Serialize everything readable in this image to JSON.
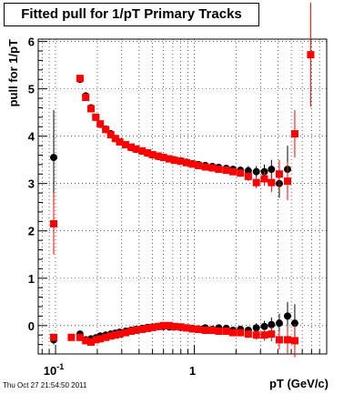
{
  "title": "Fitted pull for 1/pT  Primary Tracks",
  "datestamp": "Thu Oct 27 21:54:50 2011",
  "chart_data": {
    "type": "scatter",
    "xlabel": "pT (GeV/c)",
    "ylabel": "pull for 1/pT",
    "x_scale": "log",
    "xlim": [
      0.075,
      9.0
    ],
    "ylim": [
      -0.6,
      6.05
    ],
    "grid": true,
    "x_tick_labels": [
      {
        "value": 0.1,
        "base": "10",
        "exp": "-1"
      },
      {
        "value": 1,
        "base": "1",
        "exp": ""
      }
    ],
    "y_ticks": [
      0,
      1,
      2,
      3,
      4,
      5,
      6
    ],
    "series": [
      {
        "color": "#000000",
        "marker": "circle",
        "mean_points": [
          {
            "x": 0.097,
            "y": 3.55,
            "err": 1.0
          },
          {
            "x": 0.15,
            "y": 5.2,
            "err": 0.05
          },
          {
            "x": 0.165,
            "y": 4.85,
            "err": 0.05
          },
          {
            "x": 0.18,
            "y": 4.6,
            "err": 0.05
          },
          {
            "x": 0.195,
            "y": 4.4,
            "err": 0.04
          },
          {
            "x": 0.21,
            "y": 4.25,
            "err": 0.04
          },
          {
            "x": 0.23,
            "y": 4.15,
            "err": 0.04
          },
          {
            "x": 0.25,
            "y": 4.05,
            "err": 0.03
          },
          {
            "x": 0.27,
            "y": 3.95,
            "err": 0.03
          },
          {
            "x": 0.29,
            "y": 3.88,
            "err": 0.03
          },
          {
            "x": 0.32,
            "y": 3.82,
            "err": 0.03
          },
          {
            "x": 0.35,
            "y": 3.76,
            "err": 0.03
          },
          {
            "x": 0.38,
            "y": 3.72,
            "err": 0.03
          },
          {
            "x": 0.42,
            "y": 3.68,
            "err": 0.03
          },
          {
            "x": 0.46,
            "y": 3.64,
            "err": 0.03
          },
          {
            "x": 0.5,
            "y": 3.6,
            "err": 0.03
          },
          {
            "x": 0.55,
            "y": 3.57,
            "err": 0.03
          },
          {
            "x": 0.6,
            "y": 3.55,
            "err": 0.03
          },
          {
            "x": 0.66,
            "y": 3.52,
            "err": 0.03
          },
          {
            "x": 0.72,
            "y": 3.5,
            "err": 0.03
          },
          {
            "x": 0.8,
            "y": 3.48,
            "err": 0.03
          },
          {
            "x": 0.88,
            "y": 3.45,
            "err": 0.03
          },
          {
            "x": 0.97,
            "y": 3.42,
            "err": 0.03
          },
          {
            "x": 1.07,
            "y": 3.4,
            "err": 0.04
          },
          {
            "x": 1.2,
            "y": 3.38,
            "err": 0.04
          },
          {
            "x": 1.35,
            "y": 3.36,
            "err": 0.05
          },
          {
            "x": 1.5,
            "y": 3.34,
            "err": 0.05
          },
          {
            "x": 1.7,
            "y": 3.32,
            "err": 0.06
          },
          {
            "x": 1.9,
            "y": 3.3,
            "err": 0.07
          },
          {
            "x": 2.15,
            "y": 3.28,
            "err": 0.08
          },
          {
            "x": 2.45,
            "y": 3.27,
            "err": 0.1
          },
          {
            "x": 2.8,
            "y": 3.25,
            "err": 0.12
          },
          {
            "x": 3.2,
            "y": 3.25,
            "err": 0.15
          },
          {
            "x": 3.6,
            "y": 3.3,
            "err": 0.2
          },
          {
            "x": 4.1,
            "y": 3.0,
            "err": 0.3
          },
          {
            "x": 4.7,
            "y": 3.3,
            "err": 0.5
          }
        ],
        "sigma_points": [
          {
            "x": 0.097,
            "y": -0.3,
            "err": 0.1
          },
          {
            "x": 0.15,
            "y": -0.18,
            "err": 0.03
          },
          {
            "x": 0.165,
            "y": -0.3,
            "err": 0.03
          },
          {
            "x": 0.18,
            "y": -0.28,
            "err": 0.03
          },
          {
            "x": 0.195,
            "y": -0.26,
            "err": 0.03
          },
          {
            "x": 0.21,
            "y": -0.22,
            "err": 0.03
          },
          {
            "x": 0.23,
            "y": -0.2,
            "err": 0.03
          },
          {
            "x": 0.25,
            "y": -0.18,
            "err": 0.03
          },
          {
            "x": 0.27,
            "y": -0.16,
            "err": 0.03
          },
          {
            "x": 0.29,
            "y": -0.14,
            "err": 0.03
          },
          {
            "x": 0.32,
            "y": -0.12,
            "err": 0.03
          },
          {
            "x": 0.35,
            "y": -0.1,
            "err": 0.03
          },
          {
            "x": 0.38,
            "y": -0.08,
            "err": 0.03
          },
          {
            "x": 0.42,
            "y": -0.06,
            "err": 0.03
          },
          {
            "x": 0.46,
            "y": -0.04,
            "err": 0.03
          },
          {
            "x": 0.5,
            "y": -0.03,
            "err": 0.03
          },
          {
            "x": 0.55,
            "y": -0.02,
            "err": 0.03
          },
          {
            "x": 0.6,
            "y": -0.02,
            "err": 0.03
          },
          {
            "x": 0.66,
            "y": -0.03,
            "err": 0.03
          },
          {
            "x": 0.72,
            "y": -0.03,
            "err": 0.03
          },
          {
            "x": 0.8,
            "y": -0.04,
            "err": 0.03
          },
          {
            "x": 0.88,
            "y": -0.05,
            "err": 0.03
          },
          {
            "x": 0.97,
            "y": -0.06,
            "err": 0.03
          },
          {
            "x": 1.07,
            "y": -0.07,
            "err": 0.04
          },
          {
            "x": 1.2,
            "y": -0.05,
            "err": 0.04
          },
          {
            "x": 1.35,
            "y": -0.08,
            "err": 0.04
          },
          {
            "x": 1.5,
            "y": -0.05,
            "err": 0.05
          },
          {
            "x": 1.7,
            "y": -0.06,
            "err": 0.05
          },
          {
            "x": 1.9,
            "y": -0.1,
            "err": 0.06
          },
          {
            "x": 2.15,
            "y": -0.08,
            "err": 0.07
          },
          {
            "x": 2.45,
            "y": -0.1,
            "err": 0.08
          },
          {
            "x": 2.8,
            "y": -0.05,
            "err": 0.1
          },
          {
            "x": 3.2,
            "y": -0.02,
            "err": 0.12
          },
          {
            "x": 3.6,
            "y": 0.02,
            "err": 0.15
          },
          {
            "x": 4.1,
            "y": 0.05,
            "err": 0.2
          },
          {
            "x": 4.7,
            "y": 0.2,
            "err": 0.3
          },
          {
            "x": 5.3,
            "y": 0.05,
            "err": 0.4
          }
        ]
      },
      {
        "color": "#ff0000",
        "marker": "square",
        "mean_points": [
          {
            "x": 0.097,
            "y": 2.15,
            "err": 0.65
          },
          {
            "x": 0.15,
            "y": 5.22,
            "err": 0.05
          },
          {
            "x": 0.165,
            "y": 4.82,
            "err": 0.05
          },
          {
            "x": 0.18,
            "y": 4.58,
            "err": 0.05
          },
          {
            "x": 0.195,
            "y": 4.4,
            "err": 0.04
          },
          {
            "x": 0.21,
            "y": 4.26,
            "err": 0.04
          },
          {
            "x": 0.23,
            "y": 4.14,
            "err": 0.04
          },
          {
            "x": 0.25,
            "y": 4.03,
            "err": 0.03
          },
          {
            "x": 0.27,
            "y": 3.95,
            "err": 0.03
          },
          {
            "x": 0.29,
            "y": 3.88,
            "err": 0.03
          },
          {
            "x": 0.32,
            "y": 3.82,
            "err": 0.03
          },
          {
            "x": 0.35,
            "y": 3.77,
            "err": 0.03
          },
          {
            "x": 0.38,
            "y": 3.73,
            "err": 0.03
          },
          {
            "x": 0.42,
            "y": 3.69,
            "err": 0.03
          },
          {
            "x": 0.46,
            "y": 3.65,
            "err": 0.03
          },
          {
            "x": 0.5,
            "y": 3.61,
            "err": 0.03
          },
          {
            "x": 0.55,
            "y": 3.58,
            "err": 0.03
          },
          {
            "x": 0.6,
            "y": 3.55,
            "err": 0.03
          },
          {
            "x": 0.66,
            "y": 3.52,
            "err": 0.03
          },
          {
            "x": 0.72,
            "y": 3.49,
            "err": 0.03
          },
          {
            "x": 0.8,
            "y": 3.47,
            "err": 0.03
          },
          {
            "x": 0.88,
            "y": 3.44,
            "err": 0.03
          },
          {
            "x": 0.97,
            "y": 3.41,
            "err": 0.03
          },
          {
            "x": 1.07,
            "y": 3.38,
            "err": 0.04
          },
          {
            "x": 1.2,
            "y": 3.35,
            "err": 0.04
          },
          {
            "x": 1.35,
            "y": 3.33,
            "err": 0.05
          },
          {
            "x": 1.5,
            "y": 3.3,
            "err": 0.05
          },
          {
            "x": 1.7,
            "y": 3.28,
            "err": 0.06
          },
          {
            "x": 1.9,
            "y": 3.25,
            "err": 0.07
          },
          {
            "x": 2.15,
            "y": 3.22,
            "err": 0.08
          },
          {
            "x": 2.45,
            "y": 3.15,
            "err": 0.1
          },
          {
            "x": 2.8,
            "y": 3.02,
            "err": 0.12
          },
          {
            "x": 3.2,
            "y": 3.1,
            "err": 0.15
          },
          {
            "x": 3.6,
            "y": 3.02,
            "err": 0.2
          },
          {
            "x": 4.1,
            "y": 3.2,
            "err": 0.3
          },
          {
            "x": 4.7,
            "y": 3.05,
            "err": 0.4
          },
          {
            "x": 5.3,
            "y": 4.05,
            "err": 0.5
          },
          {
            "x": 6.9,
            "y": 5.72,
            "err": 1.1
          }
        ],
        "sigma_points": [
          {
            "x": 0.097,
            "y": -0.25,
            "err": 0.05
          },
          {
            "x": 0.13,
            "y": -0.25,
            "err": 0.04
          },
          {
            "x": 0.15,
            "y": -0.25,
            "err": 0.03
          },
          {
            "x": 0.165,
            "y": -0.32,
            "err": 0.03
          },
          {
            "x": 0.18,
            "y": -0.35,
            "err": 0.03
          },
          {
            "x": 0.195,
            "y": -0.3,
            "err": 0.03
          },
          {
            "x": 0.21,
            "y": -0.28,
            "err": 0.03
          },
          {
            "x": 0.23,
            "y": -0.25,
            "err": 0.03
          },
          {
            "x": 0.25,
            "y": -0.22,
            "err": 0.03
          },
          {
            "x": 0.27,
            "y": -0.2,
            "err": 0.03
          },
          {
            "x": 0.29,
            "y": -0.18,
            "err": 0.03
          },
          {
            "x": 0.32,
            "y": -0.15,
            "err": 0.03
          },
          {
            "x": 0.35,
            "y": -0.12,
            "err": 0.03
          },
          {
            "x": 0.38,
            "y": -0.1,
            "err": 0.03
          },
          {
            "x": 0.42,
            "y": -0.08,
            "err": 0.03
          },
          {
            "x": 0.46,
            "y": -0.06,
            "err": 0.03
          },
          {
            "x": 0.5,
            "y": -0.04,
            "err": 0.03
          },
          {
            "x": 0.55,
            "y": -0.02,
            "err": 0.03
          },
          {
            "x": 0.6,
            "y": 0.0,
            "err": 0.03
          },
          {
            "x": 0.66,
            "y": 0.0,
            "err": 0.03
          },
          {
            "x": 0.72,
            "y": -0.02,
            "err": 0.03
          },
          {
            "x": 0.8,
            "y": -0.03,
            "err": 0.03
          },
          {
            "x": 0.88,
            "y": -0.05,
            "err": 0.03
          },
          {
            "x": 0.97,
            "y": -0.07,
            "err": 0.03
          },
          {
            "x": 1.07,
            "y": -0.08,
            "err": 0.04
          },
          {
            "x": 1.2,
            "y": -0.1,
            "err": 0.04
          },
          {
            "x": 1.35,
            "y": -0.1,
            "err": 0.04
          },
          {
            "x": 1.5,
            "y": -0.12,
            "err": 0.05
          },
          {
            "x": 1.7,
            "y": -0.12,
            "err": 0.05
          },
          {
            "x": 1.9,
            "y": -0.15,
            "err": 0.06
          },
          {
            "x": 2.15,
            "y": -0.15,
            "err": 0.07
          },
          {
            "x": 2.45,
            "y": -0.18,
            "err": 0.08
          },
          {
            "x": 2.8,
            "y": -0.2,
            "err": 0.1
          },
          {
            "x": 3.2,
            "y": -0.2,
            "err": 0.12
          },
          {
            "x": 3.6,
            "y": -0.18,
            "err": 0.15
          },
          {
            "x": 4.1,
            "y": -0.3,
            "err": 0.2
          },
          {
            "x": 4.7,
            "y": -0.3,
            "err": 0.3
          },
          {
            "x": 5.3,
            "y": -0.32,
            "err": 0.35
          }
        ]
      }
    ]
  }
}
